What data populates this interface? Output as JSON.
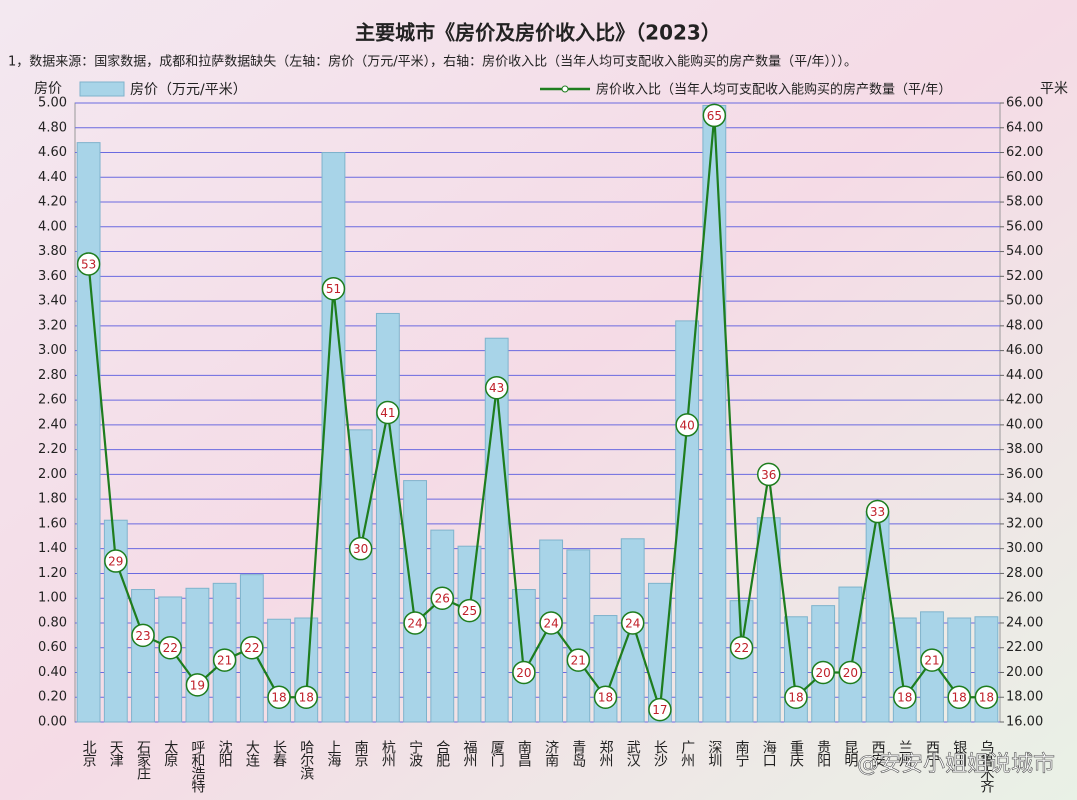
{
  "chart_data": {
    "type": "bar",
    "title": "主要城市《房价及房价收入比》（2023）",
    "subtitle": "1，数据来源：国家数据，成都和拉萨数据缺失（左轴：房价（万元/平米），右轴：房价收入比（当年人均可支配收入能购买的房产数量（平/年）））。",
    "ylabel": "房价",
    "y2label": "平米",
    "categories": [
      "北京",
      "天津",
      "石家庄",
      "太原",
      "呼和浩特",
      "沈阳",
      "大连",
      "长春",
      "哈尔滨",
      "上海",
      "南京",
      "杭州",
      "宁波",
      "合肥",
      "福州",
      "厦门",
      "南昌",
      "济南",
      "青岛",
      "郑州",
      "武汉",
      "长沙",
      "广州",
      "深圳",
      "南宁",
      "海口",
      "重庆",
      "贵阳",
      "昆明",
      "西安",
      "兰州",
      "西宁",
      "银川",
      "乌鲁木齐"
    ],
    "series": [
      {
        "name": "房价（万元/平米）",
        "type": "bar",
        "color": "#a8d4e8",
        "values": [
          4.68,
          1.63,
          1.07,
          1.01,
          1.08,
          1.12,
          1.19,
          0.83,
          0.84,
          4.6,
          2.36,
          3.3,
          1.95,
          1.55,
          1.42,
          3.1,
          1.07,
          1.47,
          1.39,
          0.86,
          1.48,
          1.12,
          3.24,
          4.98,
          0.98,
          1.65,
          0.85,
          0.94,
          1.09,
          1.7,
          0.84,
          0.89,
          0.84,
          0.85
        ]
      },
      {
        "name": "房价收入比（当年人均可支配收入能购买的房产数量（平/年）",
        "type": "line",
        "axis": "y2",
        "color": "#1e7d1e",
        "values": [
          53,
          29,
          23,
          22,
          19,
          21,
          22,
          18,
          18,
          51,
          30,
          41,
          24,
          26,
          25,
          43,
          20,
          24,
          21,
          18,
          24,
          17,
          40,
          65,
          22,
          36,
          18,
          20,
          20,
          33,
          18,
          21,
          18,
          18
        ]
      }
    ],
    "ylim": [
      0,
      5
    ],
    "yticks": [
      {
        "value": 0,
        "label": "0.00"
      },
      {
        "value": 0.2,
        "label": "0.20"
      },
      {
        "value": 0.4,
        "label": "0.40"
      },
      {
        "value": 0.6,
        "label": "0.60"
      },
      {
        "value": 0.8,
        "label": "0.80"
      },
      {
        "value": 1,
        "label": "1.00"
      },
      {
        "value": 1.2,
        "label": "1.20"
      },
      {
        "value": 1.4,
        "label": "1.40"
      },
      {
        "value": 1.6,
        "label": "1.60"
      },
      {
        "value": 1.8,
        "label": "1.80"
      },
      {
        "value": 2,
        "label": "2.00"
      },
      {
        "value": 2.2,
        "label": "2.20"
      },
      {
        "value": 2.4,
        "label": "2.40"
      },
      {
        "value": 2.6,
        "label": "2.60"
      },
      {
        "value": 2.8,
        "label": "2.80"
      },
      {
        "value": 3,
        "label": "3.00"
      },
      {
        "value": 3.2,
        "label": "3.20"
      },
      {
        "value": 3.4,
        "label": "3.40"
      },
      {
        "value": 3.6,
        "label": "3.60"
      },
      {
        "value": 3.8,
        "label": "3.80"
      },
      {
        "value": 4,
        "label": "4.00"
      },
      {
        "value": 4.2,
        "label": "4.20"
      },
      {
        "value": 4.4,
        "label": "4.40"
      },
      {
        "value": 4.6,
        "label": "4.60"
      },
      {
        "value": 4.8,
        "label": "4.80"
      },
      {
        "value": 5,
        "label": "5.00"
      }
    ],
    "y2lim": [
      16,
      66
    ],
    "y2ticks": [
      {
        "value": 16,
        "label": "16.00"
      },
      {
        "value": 18,
        "label": "18.00"
      },
      {
        "value": 20,
        "label": "20.00"
      },
      {
        "value": 22,
        "label": "22.00"
      },
      {
        "value": 24,
        "label": "24.00"
      },
      {
        "value": 26,
        "label": "26.00"
      },
      {
        "value": 28,
        "label": "28.00"
      },
      {
        "value": 30,
        "label": "30.00"
      },
      {
        "value": 32,
        "label": "32.00"
      },
      {
        "value": 34,
        "label": "34.00"
      },
      {
        "value": 36,
        "label": "36.00"
      },
      {
        "value": 38,
        "label": "38.00"
      },
      {
        "value": 40,
        "label": "40.00"
      },
      {
        "value": 42,
        "label": "42.00"
      },
      {
        "value": 44,
        "label": "44.00"
      },
      {
        "value": 46,
        "label": "46.00"
      },
      {
        "value": 48,
        "label": "48.00"
      },
      {
        "value": 50,
        "label": "50.00"
      },
      {
        "value": 52,
        "label": "52.00"
      },
      {
        "value": 54,
        "label": "54.00"
      },
      {
        "value": 56,
        "label": "56.00"
      },
      {
        "value": 58,
        "label": "58.00"
      },
      {
        "value": 60,
        "label": "60.00"
      },
      {
        "value": 62,
        "label": "62.00"
      },
      {
        "value": 64,
        "label": "64.00"
      },
      {
        "value": 66,
        "label": "66.00"
      }
    ],
    "grid": true,
    "watermark": "@安安小姐姐说城市"
  }
}
